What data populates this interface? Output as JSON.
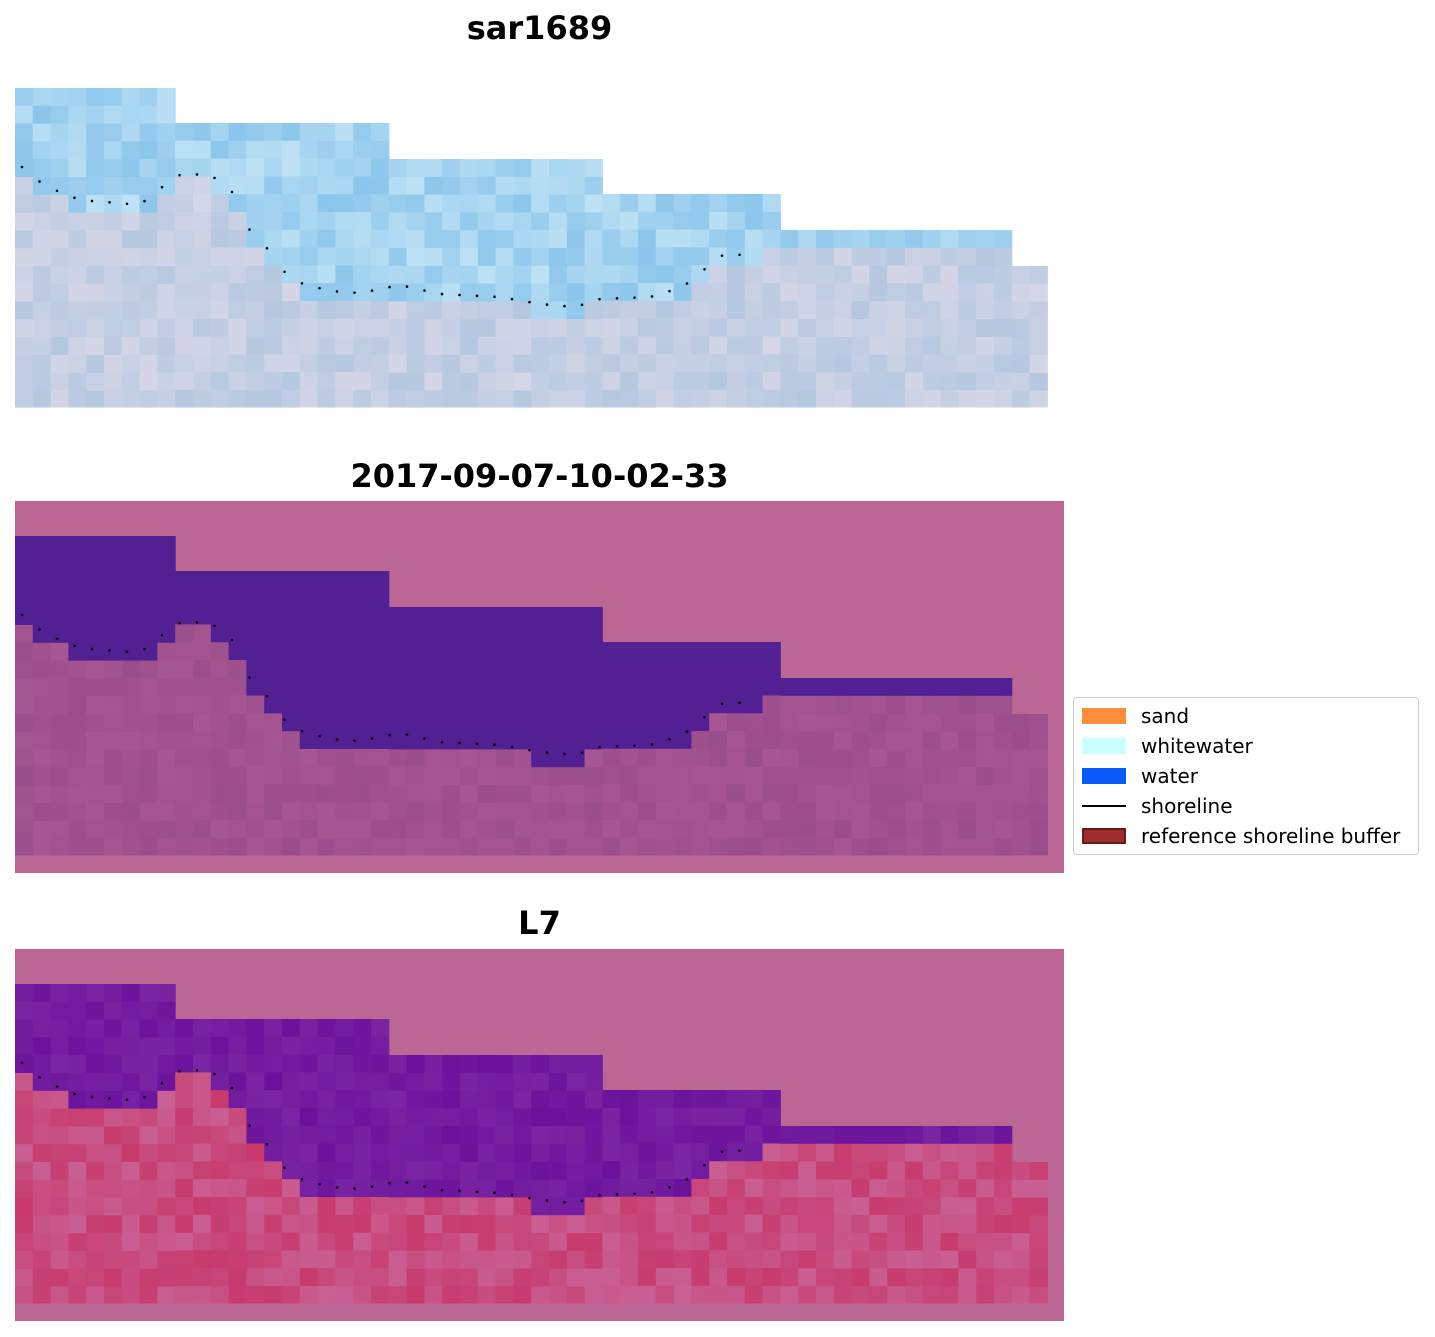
{
  "panels": [
    {
      "title": "sar1689",
      "kind": "rgb-image"
    },
    {
      "title": "2017-09-07-10-02-33",
      "kind": "classified-overlay"
    },
    {
      "title": "L7",
      "kind": "index-overlay"
    }
  ],
  "legend": {
    "items": [
      {
        "label": "sand",
        "color": "#ff8c3a",
        "type": "patch"
      },
      {
        "label": "whitewater",
        "color": "#c8ffff",
        "type": "patch"
      },
      {
        "label": "water",
        "color": "#0a5cff",
        "type": "patch"
      },
      {
        "label": "shoreline",
        "color": "#000000",
        "type": "line"
      },
      {
        "label": "reference shoreline buffer",
        "color": "#9b2d2d",
        "type": "patch"
      }
    ]
  },
  "colors": {
    "overlay_background": "#bc6696",
    "classified_water": "#522093",
    "classified_land": "#9b4e8c",
    "index_water": "#6a129b",
    "index_land": "#c83a6c",
    "rgb_water": "#8cc6ec",
    "rgb_land": "#b4c8e0"
  }
}
